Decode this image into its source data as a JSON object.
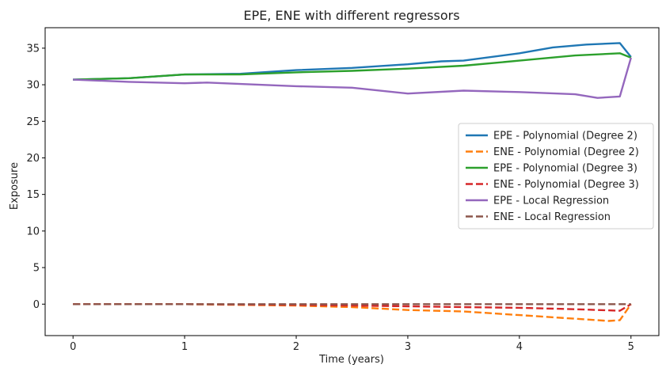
{
  "chart_data": {
    "type": "line",
    "title": "EPE, ENE with different regressors",
    "xlabel": "Time (years)",
    "ylabel": "Exposure",
    "xlim": [
      -0.25,
      5.25
    ],
    "ylim": [
      -4.3,
      37.8
    ],
    "xticks": [
      0,
      1,
      2,
      3,
      4,
      5
    ],
    "yticks": [
      0,
      5,
      10,
      15,
      20,
      25,
      30,
      35
    ],
    "grid": false,
    "legend_position": "center-right",
    "series": [
      {
        "name": "EPE - Polynomial (Degree 2)",
        "color": "#1f77b4",
        "style": "solid",
        "x": [
          0,
          0.5,
          1,
          1.5,
          2,
          2.5,
          3,
          3.3,
          3.5,
          4,
          4.3,
          4.6,
          4.9,
          5
        ],
        "y": [
          30.7,
          30.9,
          31.4,
          31.5,
          32.0,
          32.3,
          32.8,
          33.2,
          33.3,
          34.3,
          35.1,
          35.5,
          35.7,
          33.8
        ]
      },
      {
        "name": "ENE - Polynomial (Degree 2)",
        "color": "#ff7f0e",
        "style": "dashed",
        "x": [
          0,
          1,
          2,
          2.5,
          3,
          3.5,
          4,
          4.5,
          4.8,
          4.9,
          5
        ],
        "y": [
          0,
          0,
          -0.2,
          -0.4,
          -0.8,
          -1.0,
          -1.5,
          -2.0,
          -2.3,
          -2.2,
          0
        ]
      },
      {
        "name": "EPE - Polynomial (Degree 3)",
        "color": "#2ca02c",
        "style": "solid",
        "x": [
          0,
          0.5,
          1,
          1.5,
          2,
          2.5,
          3,
          3.5,
          4,
          4.5,
          4.9,
          5
        ],
        "y": [
          30.7,
          30.9,
          31.4,
          31.4,
          31.7,
          31.9,
          32.2,
          32.6,
          33.3,
          34.0,
          34.3,
          33.7
        ]
      },
      {
        "name": "ENE - Polynomial (Degree 3)",
        "color": "#d62728",
        "style": "dashed",
        "x": [
          0,
          1,
          2,
          3,
          3.5,
          4,
          4.5,
          4.9,
          5
        ],
        "y": [
          0,
          0,
          -0.1,
          -0.3,
          -0.4,
          -0.5,
          -0.7,
          -0.9,
          0
        ]
      },
      {
        "name": "EPE - Local Regression",
        "color": "#9467bd",
        "style": "solid",
        "x": [
          0,
          0.5,
          1,
          1.2,
          1.5,
          2,
          2.5,
          3,
          3.5,
          4,
          4.5,
          4.7,
          4.9,
          5
        ],
        "y": [
          30.7,
          30.4,
          30.2,
          30.3,
          30.1,
          29.8,
          29.6,
          28.8,
          29.2,
          29.0,
          28.7,
          28.2,
          28.4,
          33.7
        ]
      },
      {
        "name": "ENE - Local Regression",
        "color": "#8c564b",
        "style": "dashed",
        "x": [
          0,
          1,
          2,
          3,
          4,
          5
        ],
        "y": [
          0,
          0,
          0,
          0,
          0,
          0
        ]
      }
    ]
  }
}
